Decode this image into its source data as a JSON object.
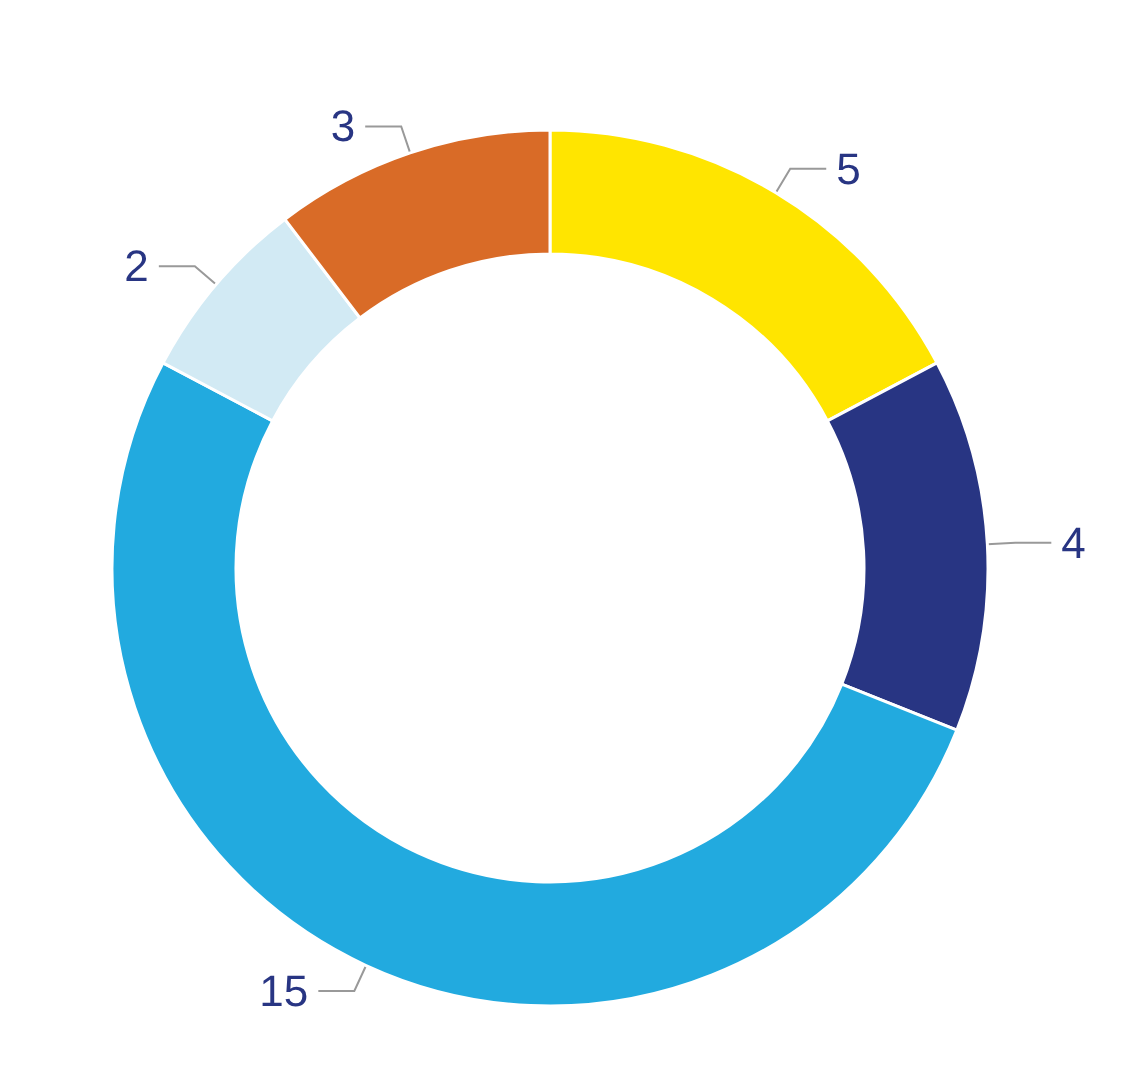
{
  "chart_data": {
    "type": "donut",
    "categories": [
      null,
      null,
      null,
      null,
      null
    ],
    "values": [
      5,
      4,
      15,
      2,
      3
    ],
    "colors": [
      "#ffe500",
      "#283583",
      "#22aadf",
      "#d2eaf4",
      "#d96b27"
    ],
    "data_labels": true
  }
}
